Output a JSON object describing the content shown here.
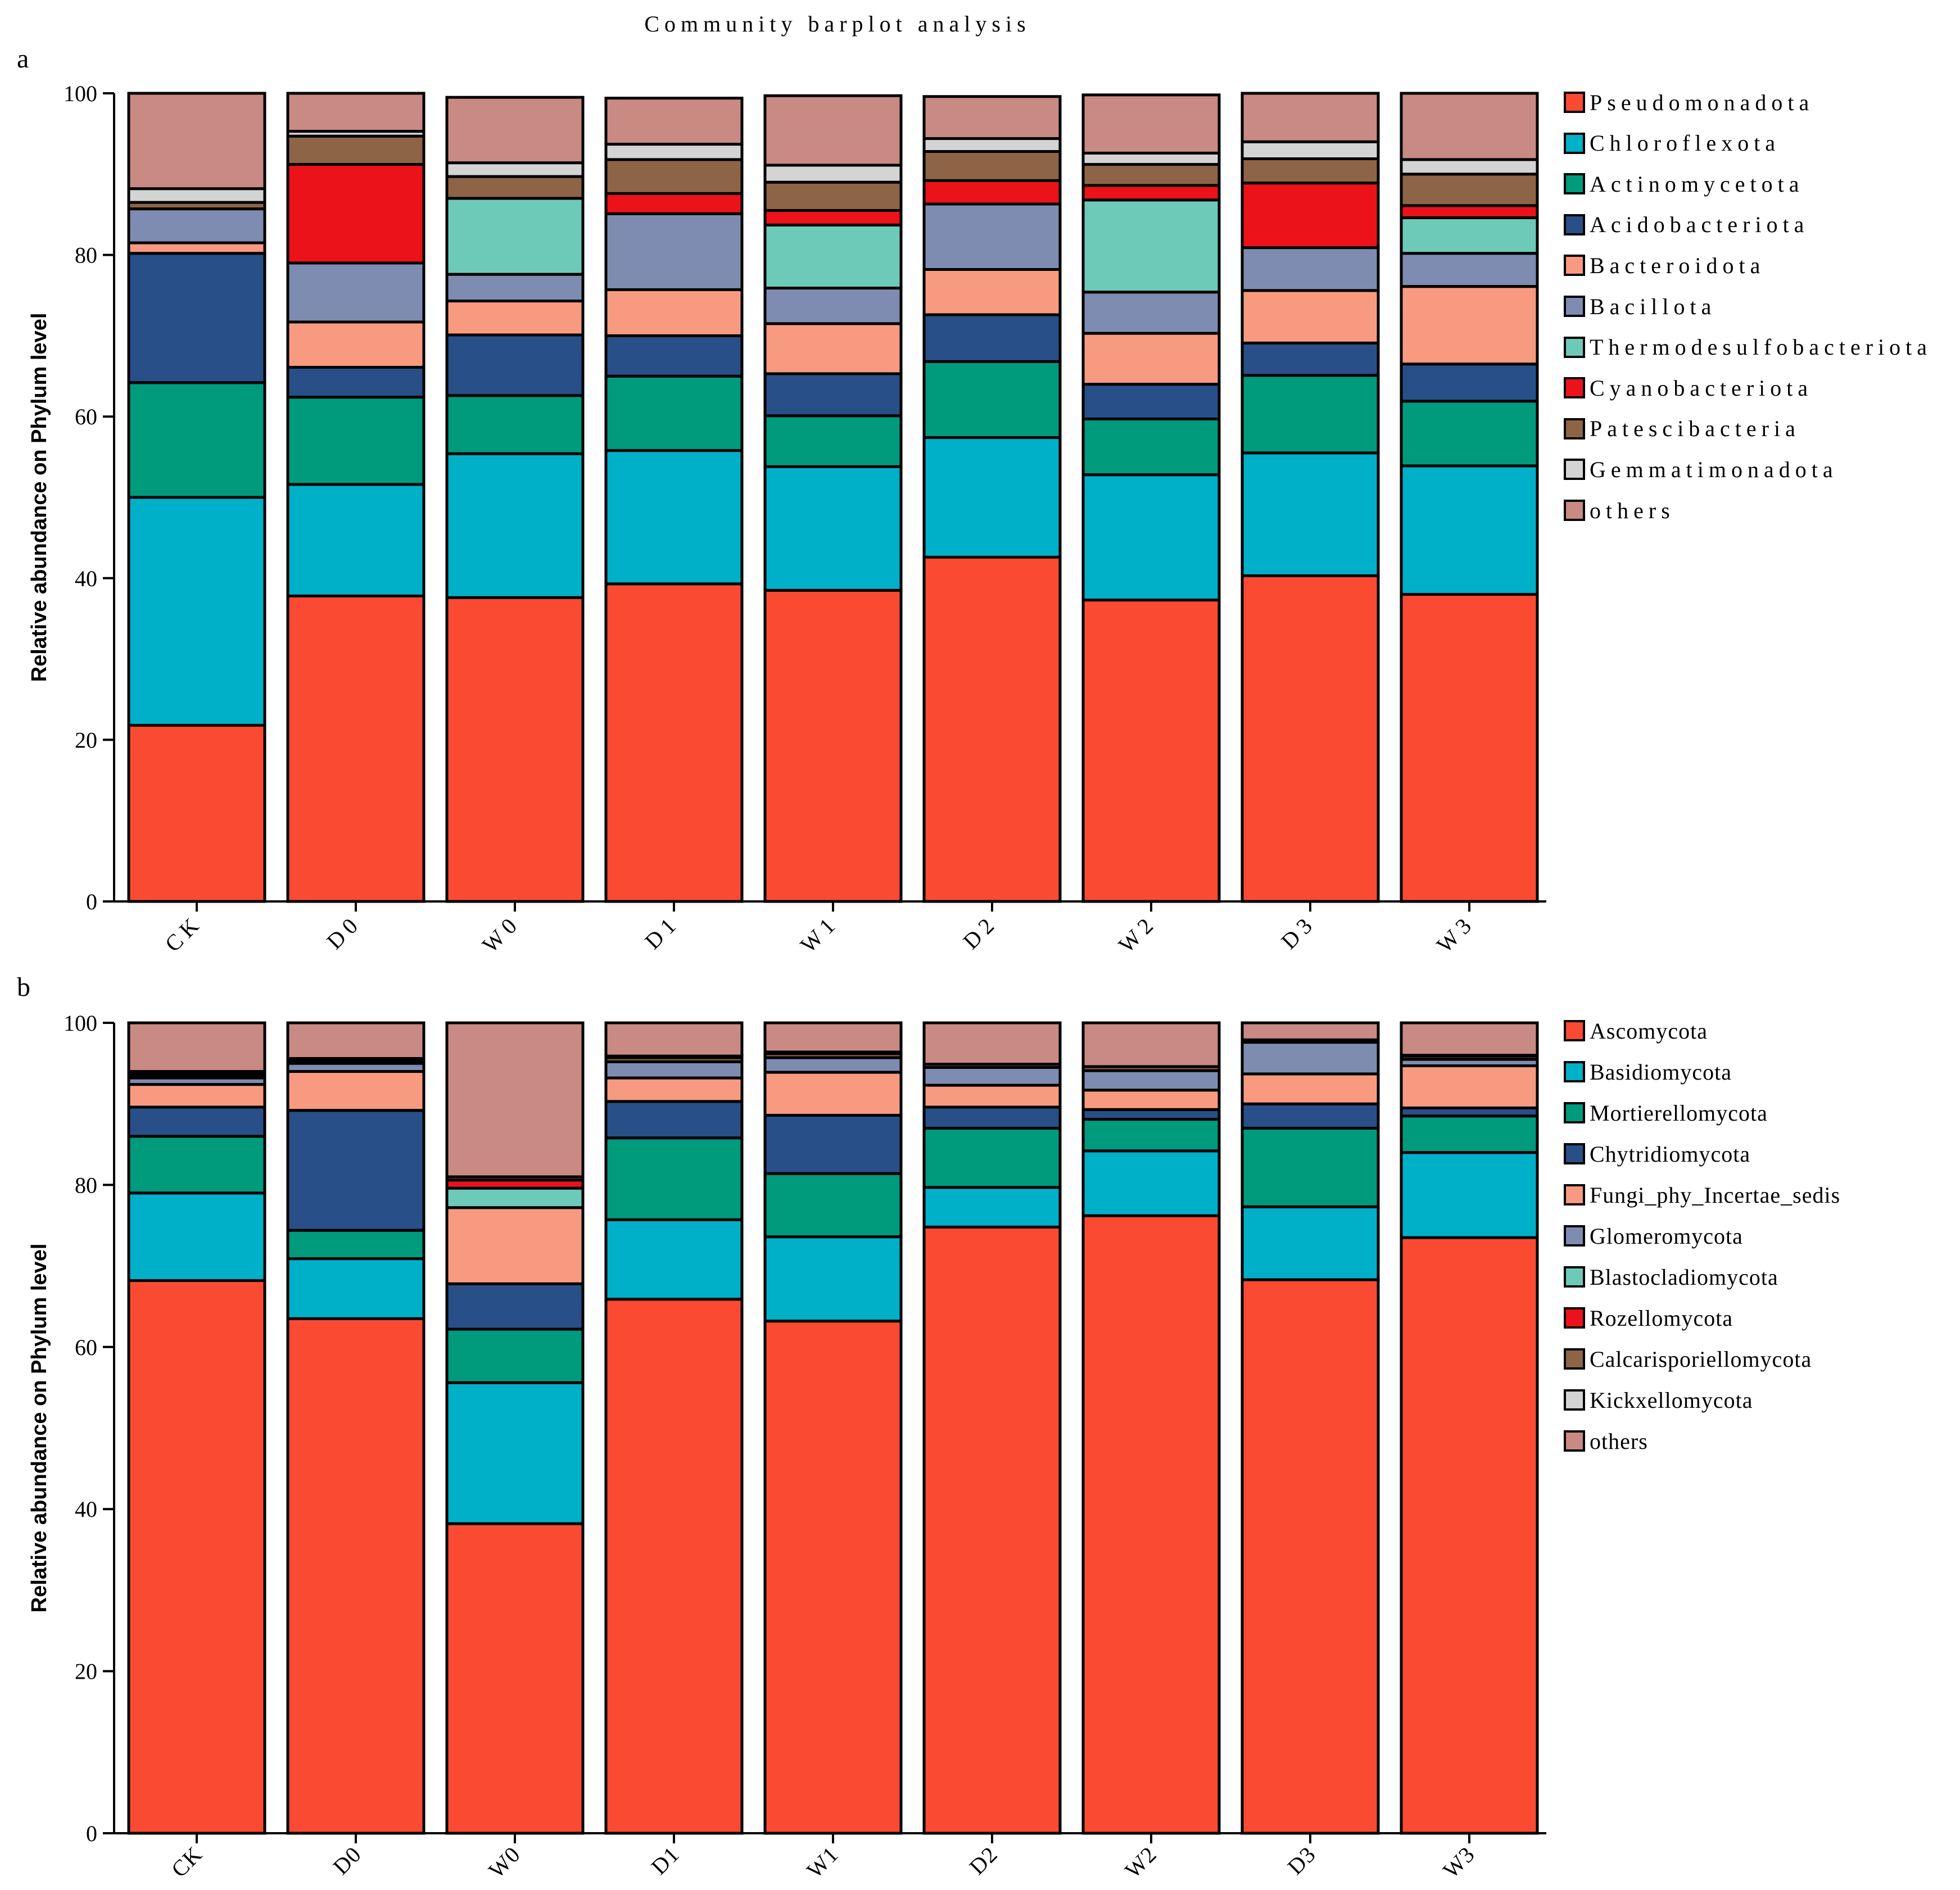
{
  "figure_title": "Community barplot analysis",
  "chart_data": [
    {
      "type": "bar",
      "stacked": true,
      "panel_label": "a",
      "title": "Community barplot analysis",
      "xlabel": "",
      "ylabel": "Relative abundance on Phylum level",
      "ylim": [
        0,
        100
      ],
      "yticks": [
        0,
        20,
        40,
        60,
        80,
        100
      ],
      "legend_position": "right",
      "categories": [
        "CK",
        "D0",
        "W0",
        "D1",
        "W1",
        "D2",
        "W2",
        "D3",
        "W3"
      ],
      "series": [
        {
          "name": "Pseudomonadota",
          "color": "#fa4a32",
          "values": [
            21.8,
            37.8,
            37.6,
            39.3,
            38.5,
            42.6,
            37.3,
            40.3,
            38.0
          ]
        },
        {
          "name": "Chloroflexota",
          "color": "#00b0c8",
          "values": [
            28.2,
            13.8,
            17.8,
            16.5,
            15.3,
            14.8,
            15.5,
            15.2,
            15.9
          ]
        },
        {
          "name": "Actinomycetota",
          "color": "#009a7c",
          "values": [
            14.2,
            10.8,
            7.2,
            9.2,
            6.3,
            9.4,
            6.9,
            9.6,
            8.0
          ]
        },
        {
          "name": "Acidobacteriota",
          "color": "#284f87",
          "values": [
            16.0,
            3.7,
            7.5,
            5.0,
            5.2,
            5.8,
            4.3,
            4.0,
            4.6
          ]
        },
        {
          "name": "Bacteroidota",
          "color": "#f89a7f",
          "values": [
            1.3,
            5.6,
            4.2,
            5.7,
            6.2,
            5.6,
            6.3,
            6.5,
            9.6
          ]
        },
        {
          "name": "Bacillota",
          "color": "#7f8cb1",
          "values": [
            4.2,
            7.3,
            3.3,
            9.4,
            4.4,
            8.1,
            5.1,
            5.3,
            4.1
          ]
        },
        {
          "name": "Thermodesulfobacteriota",
          "color": "#6ecab8",
          "values": [
            0.0,
            0.0,
            9.4,
            0.0,
            7.8,
            0.0,
            11.4,
            0.0,
            4.4
          ]
        },
        {
          "name": "Cyanobacteriota",
          "color": "#ec1219",
          "values": [
            0.0,
            12.2,
            0.0,
            2.5,
            1.8,
            2.9,
            1.8,
            8.0,
            1.5
          ]
        },
        {
          "name": "Patescibacteria",
          "color": "#8e6447",
          "values": [
            0.8,
            3.5,
            2.7,
            4.2,
            3.5,
            3.6,
            2.6,
            3.0,
            3.9
          ]
        },
        {
          "name": "Gemmatimonadota",
          "color": "#d4d4d4",
          "values": [
            1.7,
            0.6,
            1.7,
            1.9,
            2.1,
            1.6,
            1.4,
            2.1,
            1.8
          ]
        },
        {
          "name": "others",
          "color": "#c98a84",
          "values": [
            11.8,
            4.7,
            8.1,
            5.7,
            8.6,
            5.2,
            7.2,
            6.0,
            8.2
          ]
        }
      ]
    },
    {
      "type": "bar",
      "stacked": true,
      "panel_label": "b",
      "title": "",
      "xlabel": "",
      "ylabel": "Relative abundance on Phylum level",
      "ylim": [
        0,
        100
      ],
      "yticks": [
        0,
        20,
        40,
        60,
        80,
        100
      ],
      "legend_position": "right",
      "categories": [
        "CK",
        "D0",
        "W0",
        "D1",
        "W1",
        "D2",
        "W2",
        "D3",
        "W3"
      ],
      "series": [
        {
          "name": "Ascomycota",
          "color": "#fa4a32",
          "values": [
            68.2,
            63.5,
            38.2,
            65.9,
            63.2,
            74.8,
            76.2,
            68.3,
            73.5
          ]
        },
        {
          "name": "Basidiomycota",
          "color": "#00b0c8",
          "values": [
            10.8,
            7.4,
            17.4,
            9.8,
            10.4,
            4.9,
            8.0,
            9.0,
            10.5
          ]
        },
        {
          "name": "Mortierellomycota",
          "color": "#009a7c",
          "values": [
            7.0,
            3.5,
            6.6,
            10.1,
            7.8,
            7.3,
            3.9,
            9.7,
            4.5
          ]
        },
        {
          "name": "Chytridiomycota",
          "color": "#284f87",
          "values": [
            3.6,
            14.8,
            5.6,
            4.5,
            7.2,
            2.6,
            1.2,
            3.0,
            1.0
          ]
        },
        {
          "name": "Fungi_phy_Incertae_sedis",
          "color": "#f89a7f",
          "values": [
            2.8,
            4.8,
            9.4,
            2.9,
            5.3,
            2.7,
            2.4,
            3.7,
            5.2
          ]
        },
        {
          "name": "Glomeromycota",
          "color": "#7f8cb1",
          "values": [
            0.8,
            1.0,
            0.0,
            2.0,
            1.8,
            2.2,
            2.4,
            3.9,
            0.8
          ]
        },
        {
          "name": "Blastocladiomycota",
          "color": "#6ecab8",
          "values": [
            0.0,
            0.0,
            2.4,
            0.0,
            0.0,
            0.0,
            0.0,
            0.0,
            0.0
          ]
        },
        {
          "name": "Rozellomycota",
          "color": "#ec1219",
          "values": [
            0.3,
            0.0,
            1.0,
            0.0,
            0.0,
            0.0,
            0.0,
            0.0,
            0.0
          ]
        },
        {
          "name": "Calcarisporiellomycota",
          "color": "#8e6447",
          "values": [
            0.3,
            0.3,
            0.4,
            0.5,
            0.5,
            0.4,
            0.5,
            0.0,
            0.4
          ]
        },
        {
          "name": "Kickxellomycota",
          "color": "#d4d4d4",
          "values": [
            0.2,
            0.3,
            0.0,
            0.2,
            0.2,
            0.0,
            0.0,
            0.3,
            0.1
          ]
        },
        {
          "name": "others",
          "color": "#c98a84",
          "values": [
            6.0,
            4.4,
            19.0,
            4.1,
            3.6,
            5.1,
            5.4,
            2.1,
            4.0
          ]
        }
      ]
    }
  ]
}
